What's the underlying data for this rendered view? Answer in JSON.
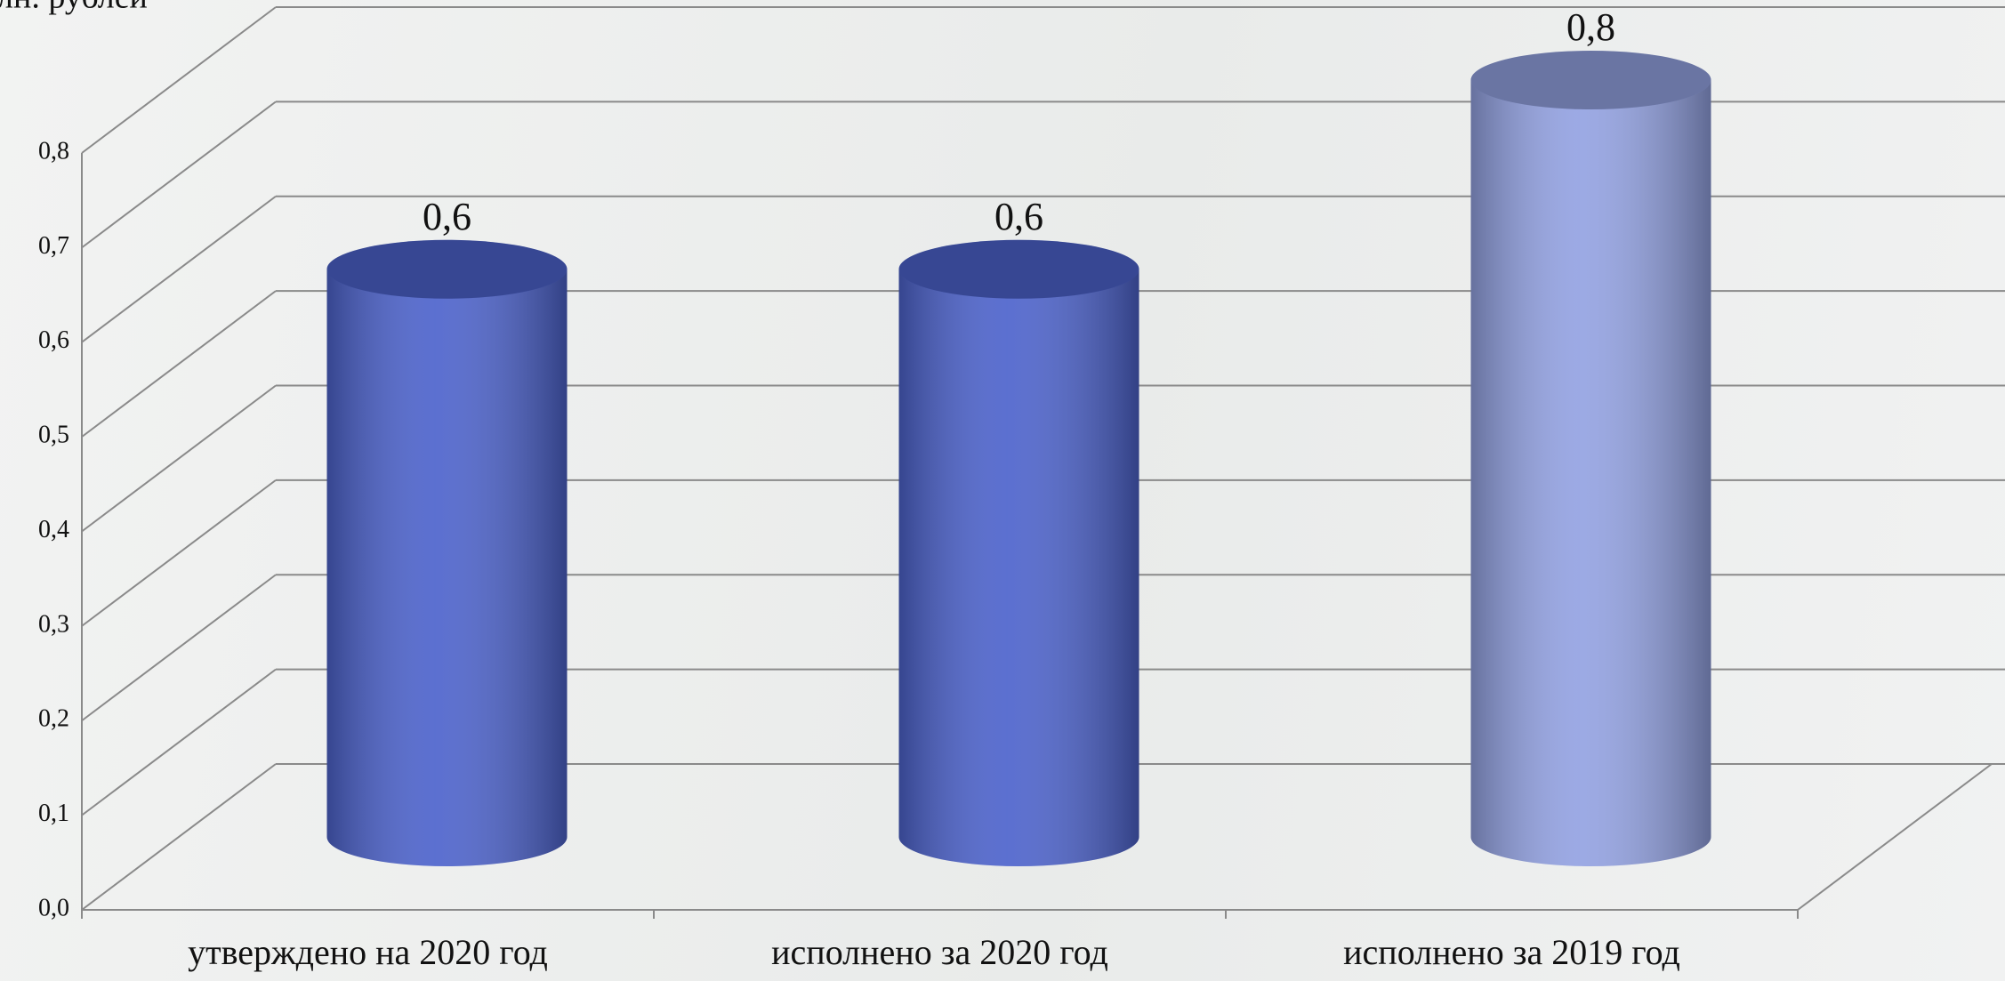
{
  "chart_data": {
    "type": "bar3d",
    "y_axis_label": "млн. рублей",
    "categories": [
      "утверждено на 2020 год",
      "исполнено за 2020 год",
      "исполнено за 2019 год"
    ],
    "values": [
      0.6,
      0.6,
      0.8
    ],
    "value_labels": [
      "0,6",
      "0,6",
      "0,8"
    ],
    "colors": [
      "#4d63cc",
      "#4d63cc",
      "#93a2e2"
    ],
    "ylim": [
      0,
      0.8
    ],
    "yticks": [
      {
        "value": 0,
        "label": "0,0"
      },
      {
        "value": 0.1,
        "label": "0,1"
      },
      {
        "value": 0.2,
        "label": "0,2"
      },
      {
        "value": 0.3,
        "label": "0,3"
      },
      {
        "value": 0.4,
        "label": "0,4"
      },
      {
        "value": 0.5,
        "label": "0,5"
      },
      {
        "value": 0.6,
        "label": "0,6"
      },
      {
        "value": 0.7,
        "label": "0,7"
      },
      {
        "value": 0.8,
        "label": "0,8"
      }
    ],
    "grid": true
  }
}
